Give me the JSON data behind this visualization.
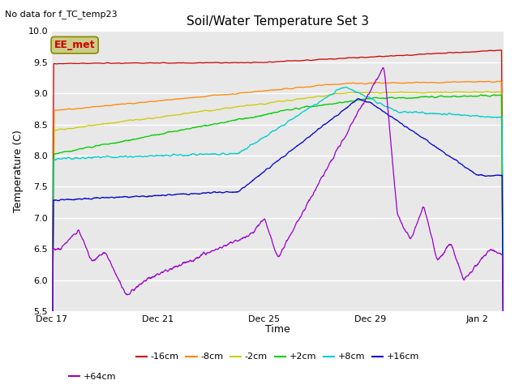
{
  "title": "Soil/Water Temperature Set 3",
  "subtitle": "No data for f_TC_temp23",
  "ylabel": "Temperature (C)",
  "xlabel": "Time",
  "ylim": [
    5.5,
    10.0
  ],
  "yticks": [
    5.5,
    6.0,
    6.5,
    7.0,
    7.5,
    8.0,
    8.5,
    9.0,
    9.5,
    10.0
  ],
  "plot_bg": "#e8e8e8",
  "series": [
    {
      "label": "-16cm",
      "color": "#cc0000"
    },
    {
      "label": "-8cm",
      "color": "#ff8800"
    },
    {
      "label": "-2cm",
      "color": "#cccc00"
    },
    {
      "label": "+2cm",
      "color": "#00cc00"
    },
    {
      "label": "+8cm",
      "color": "#00cccc"
    },
    {
      "label": "+16cm",
      "color": "#0000cc"
    },
    {
      "label": "+64cm",
      "color": "#9900cc"
    }
  ],
  "xtick_labels": [
    "Dec 17",
    "Dec 21",
    "Dec 25",
    "Dec 29",
    "Jan 2"
  ],
  "xtick_positions": [
    0,
    4,
    8,
    12,
    16
  ],
  "xlim": [
    0,
    17
  ],
  "ee_met_box_color": "#cccc88",
  "ee_met_edge_color": "#888800",
  "ee_met_text": "EE_met",
  "ee_met_text_color": "#cc0000"
}
